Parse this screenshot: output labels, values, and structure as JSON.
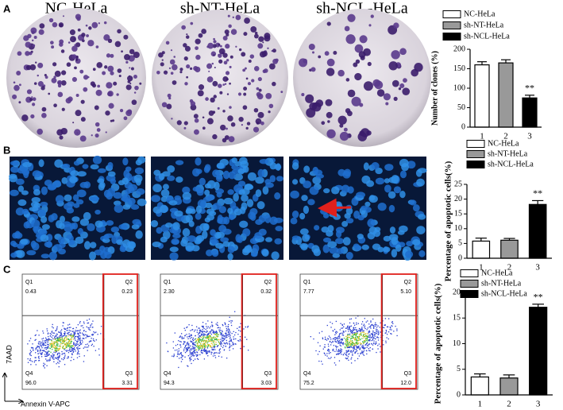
{
  "panels": {
    "a": "A",
    "b": "B",
    "c": "C"
  },
  "dish_titles": [
    "NC-HeLa",
    "sh-NT-HeLa",
    "sh-NCL-HeLa"
  ],
  "flow": {
    "y_axis_label": "7AAD",
    "x_axis_label": "Annexin V-APC",
    "plots": [
      {
        "quadrants": [
          {
            "name": "Q1",
            "value": "0.43"
          },
          {
            "name": "Q2",
            "value": "0.23"
          },
          {
            "name": "Q3",
            "value": "3.31"
          },
          {
            "name": "Q4",
            "value": "96.0"
          }
        ]
      },
      {
        "quadrants": [
          {
            "name": "Q1",
            "value": "2.30"
          },
          {
            "name": "Q2",
            "value": "0.32"
          },
          {
            "name": "Q3",
            "value": "3.03"
          },
          {
            "name": "Q4",
            "value": "94.3"
          }
        ]
      },
      {
        "quadrants": [
          {
            "name": "Q1",
            "value": "7.77"
          },
          {
            "name": "Q2",
            "value": "5.10"
          },
          {
            "name": "Q3",
            "value": "12.0"
          },
          {
            "name": "Q4",
            "value": "75.2"
          }
        ]
      }
    ]
  },
  "chart_data": [
    {
      "type": "bar",
      "y_label": "Number of clones (%)",
      "categories": [
        "1",
        "2",
        "3"
      ],
      "series": [
        {
          "name": "NC-HeLa",
          "color": "#ffffff",
          "values": [
            160,
            null,
            null
          ],
          "errors": [
            8,
            null,
            null
          ]
        },
        {
          "name": "sh-NT-HeLa",
          "color": "#999999",
          "values": [
            null,
            165,
            null
          ],
          "errors": [
            null,
            8,
            null
          ]
        },
        {
          "name": "sh-NCL-HeLa",
          "color": "#000000",
          "values": [
            null,
            null,
            75
          ],
          "errors": [
            null,
            null,
            7
          ]
        }
      ],
      "ylim": [
        0,
        200
      ],
      "yticks": [
        0,
        50,
        100,
        150,
        200
      ],
      "annotation": "**",
      "legend": "top-left"
    },
    {
      "type": "bar",
      "y_label": "Percentage of apoptotic cells(%)",
      "categories": [
        "1",
        "2",
        "3"
      ],
      "series": [
        {
          "name": "NC-HeLa",
          "color": "#ffffff",
          "values": [
            5.8,
            null,
            null
          ],
          "errors": [
            1.0,
            null,
            null
          ]
        },
        {
          "name": "sh-NT-HeLa",
          "color": "#999999",
          "values": [
            null,
            6.1,
            null
          ],
          "errors": [
            null,
            0.6,
            null
          ]
        },
        {
          "name": "sh-NCL-HeLa",
          "color": "#000000",
          "values": [
            null,
            null,
            18.2
          ],
          "errors": [
            null,
            null,
            1.3
          ]
        }
      ],
      "ylim": [
        0,
        25
      ],
      "yticks": [
        0,
        5,
        10,
        15,
        20,
        25
      ],
      "annotation": "**",
      "legend": "top-left"
    },
    {
      "type": "bar",
      "y_label": "Percentage of apoptotic cells(%)",
      "categories": [
        "1",
        "2",
        "3"
      ],
      "series": [
        {
          "name": "NC-HeLa",
          "color": "#ffffff",
          "values": [
            3.5,
            null,
            null
          ],
          "errors": [
            0.6,
            null,
            null
          ]
        },
        {
          "name": "sh-NT-HeLa",
          "color": "#999999",
          "values": [
            null,
            3.3,
            null
          ],
          "errors": [
            null,
            0.6,
            null
          ]
        },
        {
          "name": "sh-NCL-HeLa",
          "color": "#000000",
          "values": [
            null,
            null,
            17.1
          ],
          "errors": [
            null,
            null,
            0.6
          ]
        }
      ],
      "ylim": [
        0,
        20
      ],
      "yticks": [
        0,
        5,
        10,
        15,
        20
      ],
      "annotation": "**",
      "legend": "top-left"
    }
  ]
}
